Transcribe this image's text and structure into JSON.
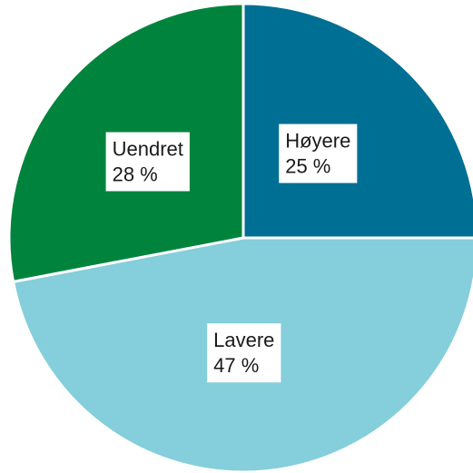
{
  "chart_data": {
    "type": "pie",
    "categories": [
      "Høyere",
      "Lavere",
      "Uendret"
    ],
    "values": [
      25,
      47,
      28
    ],
    "value_labels": [
      "25 %",
      "47 %",
      "28 %"
    ],
    "colors": [
      "#006f94",
      "#85cedb",
      "#00843d"
    ]
  }
}
